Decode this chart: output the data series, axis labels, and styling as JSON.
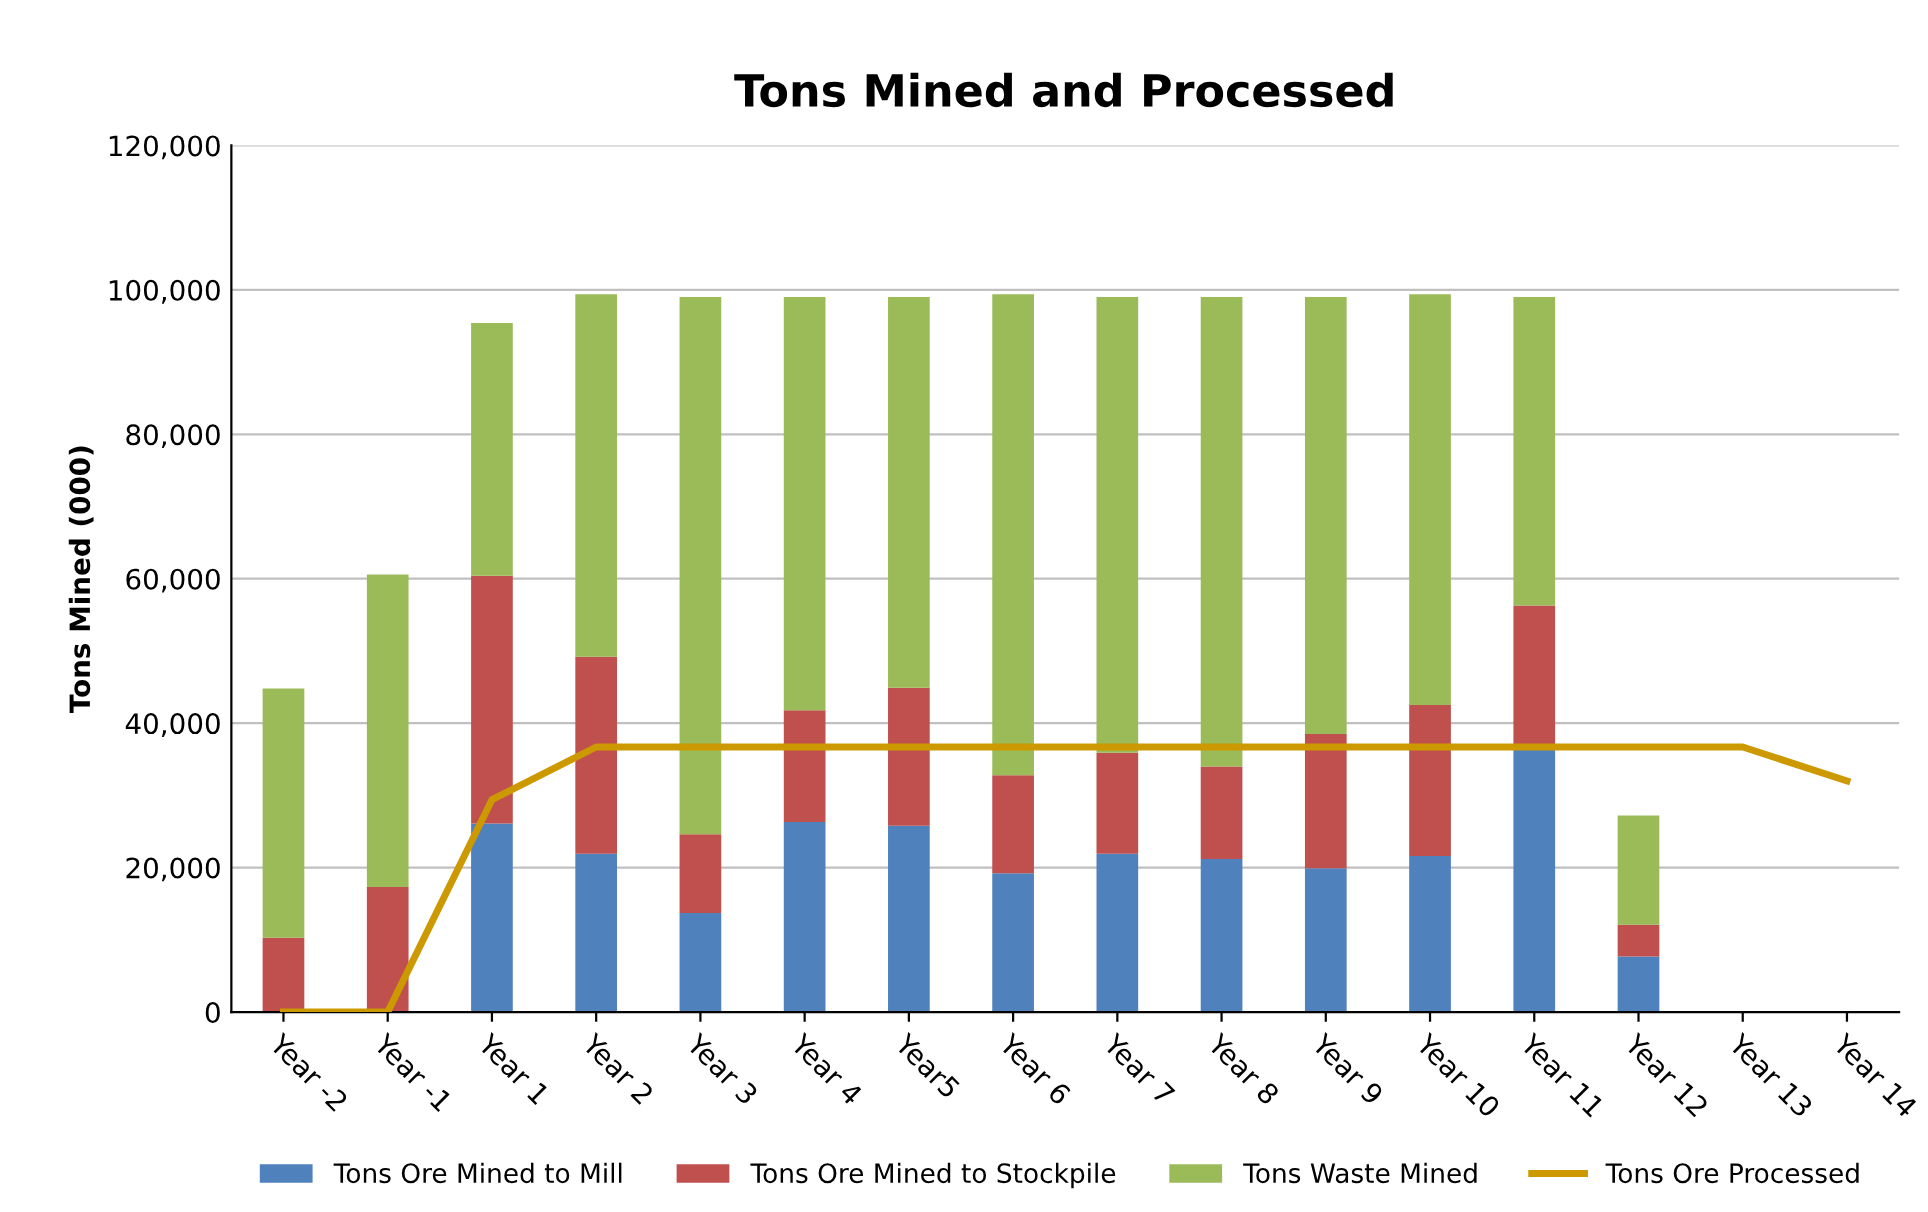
{
  "chart_data": {
    "type": "bar",
    "stacked": true,
    "title": "Tons Mined and Processed",
    "ylabel": "Tons Mined (000)",
    "categories": [
      "Year -2",
      "Year -1",
      "Year 1",
      "Year 2",
      "Year 3",
      "Year 4",
      "Year5",
      "Year 6",
      "Year 7",
      "Year 8",
      "Year 9",
      "Year 10",
      "Year 11",
      "Year 12",
      "Year 13",
      "Year 14"
    ],
    "series": [
      {
        "name": "Tons Ore Mined to Mill",
        "color": "#4f81bd",
        "values": [
          0,
          0,
          26100,
          21900,
          13700,
          26300,
          25800,
          19200,
          21900,
          21200,
          19900,
          21600,
          36300,
          7700,
          null,
          null
        ]
      },
      {
        "name": "Tons Ore Mined to Stockpile",
        "color": "#c0504d",
        "values": [
          10300,
          17300,
          34300,
          27300,
          10900,
          15500,
          19100,
          13600,
          14000,
          12800,
          18600,
          20900,
          20000,
          4400,
          null,
          null
        ]
      },
      {
        "name": "Tons Waste Mined",
        "color": "#9bbb59",
        "values": [
          34500,
          43300,
          35000,
          50200,
          74400,
          57200,
          54100,
          66600,
          63100,
          65000,
          60500,
          56900,
          42700,
          15100,
          null,
          null
        ]
      },
      {
        "name": "Tons Ore Processed",
        "type": "line",
        "color": "#cc9900",
        "values": [
          0,
          0,
          29400,
          36700,
          36700,
          36700,
          36700,
          36700,
          36700,
          36700,
          36700,
          36700,
          36700,
          36700,
          36700,
          32000
        ]
      }
    ],
    "ylim": [
      0,
      120000
    ],
    "yticks": [
      {
        "value": 0,
        "label": "0"
      },
      {
        "value": 20000,
        "label": "20,000"
      },
      {
        "value": 40000,
        "label": "40,000"
      },
      {
        "value": 60000,
        "label": "60,000"
      },
      {
        "value": 80000,
        "label": "80,000"
      },
      {
        "value": 100000,
        "label": "100,000"
      },
      {
        "value": 120000,
        "label": "120,000"
      }
    ],
    "grid": "y",
    "legend": "bottom"
  }
}
